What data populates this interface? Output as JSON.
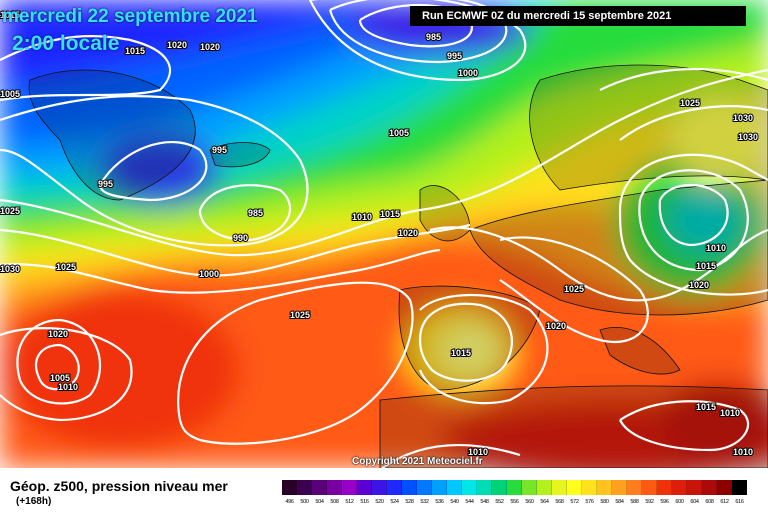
{
  "header": {
    "date": "mercredi 22 septembre 2021",
    "time": "2:00 locale",
    "run": "Run ECMWF 0Z du mercredi 15 septembre 2021"
  },
  "footer": {
    "title": "Géop. z500, pression niveau mer",
    "subtitle": "(+168h)",
    "copyright": "Copyright 2021 Meteociel.fr"
  },
  "isobar_labels": [
    "1015",
    "1020",
    "1020",
    "1015",
    "985",
    "995",
    "1000",
    "1005",
    "995",
    "995",
    "985",
    "990",
    "1000",
    "1010",
    "1015",
    "1020",
    "1025",
    "1030",
    "1025",
    "1025",
    "1030",
    "1020",
    "1005",
    "1010",
    "1025",
    "1015",
    "1020",
    "1025",
    "1030",
    "1010",
    "1015",
    "1020",
    "1015",
    "1010",
    "1010",
    "1010",
    "1005"
  ],
  "colorbar": {
    "values": [
      "496",
      "500",
      "504",
      "508",
      "512",
      "516",
      "520",
      "524",
      "528",
      "532",
      "536",
      "540",
      "544",
      "548",
      "552",
      "556",
      "560",
      "564",
      "568",
      "572",
      "576",
      "580",
      "584",
      "588",
      "592",
      "596",
      "600",
      "604",
      "608",
      "612",
      "616"
    ],
    "colors": [
      "#280028",
      "#3c0050",
      "#5a0078",
      "#7800a0",
      "#9600c8",
      "#5a00d2",
      "#3c14e6",
      "#1e28ff",
      "#0050ff",
      "#0078ff",
      "#00a0ff",
      "#00c8ff",
      "#00e6e6",
      "#00dcb4",
      "#00d278",
      "#28dc3c",
      "#78e628",
      "#b4f01e",
      "#e6f51e",
      "#ffff1e",
      "#ffe11e",
      "#ffc31e",
      "#ffa01e",
      "#ff7d1e",
      "#ff5a14",
      "#f0320a",
      "#dc1e0a",
      "#c8140a",
      "#aa0a0a",
      "#8c0000",
      "#000000"
    ]
  }
}
